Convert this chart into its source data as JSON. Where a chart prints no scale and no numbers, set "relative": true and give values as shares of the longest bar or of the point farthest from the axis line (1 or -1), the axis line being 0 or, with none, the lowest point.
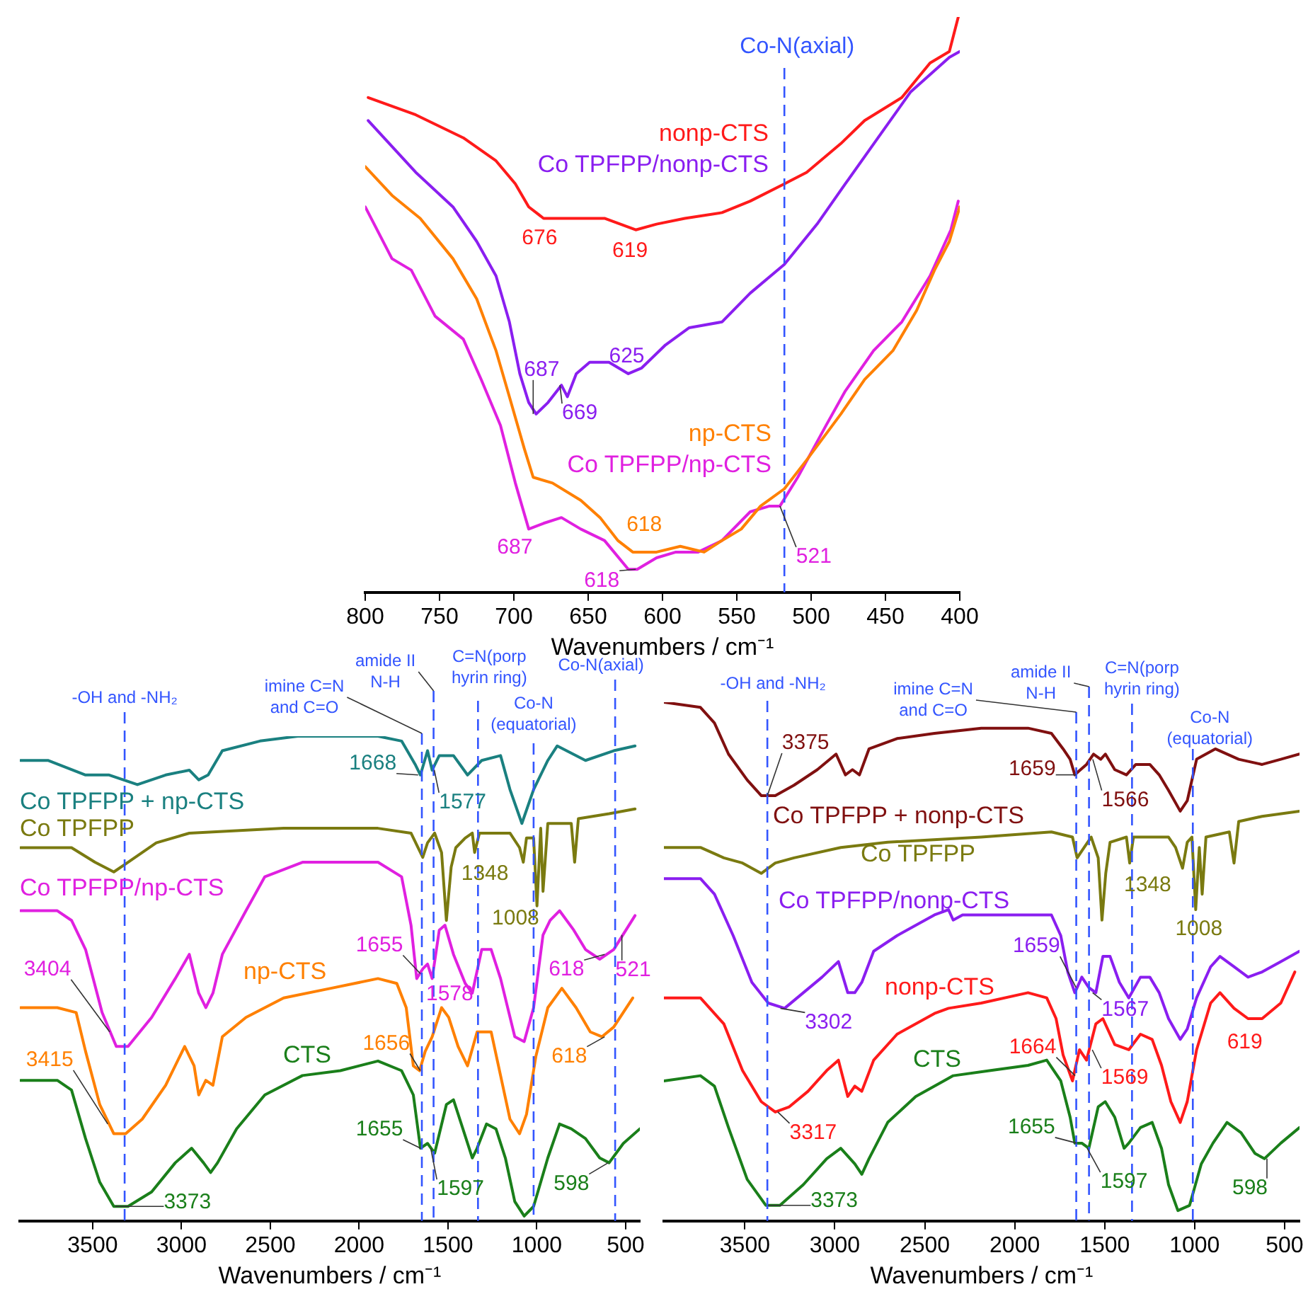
{
  "chart_data": [
    {
      "type": "line",
      "relative": true,
      "xlabel": "Wavenumbers / cm⁻¹",
      "xlim": [
        800,
        400
      ],
      "xticks": [
        800,
        750,
        700,
        650,
        600,
        550,
        500,
        450,
        400
      ],
      "series": [
        {
          "name": "nonp-CTS",
          "color": "#ff1a1a",
          "x": [
            798,
            766,
            734,
            712,
            699,
            690,
            680,
            668,
            652,
            639,
            618,
            604,
            585,
            560,
            541,
            518,
            503,
            480,
            464,
            439,
            420,
            407,
            401
          ],
          "values": [
            0.86,
            0.83,
            0.79,
            0.75,
            0.71,
            0.67,
            0.65,
            0.65,
            0.65,
            0.65,
            0.63,
            0.64,
            0.65,
            0.66,
            0.68,
            0.71,
            0.73,
            0.78,
            0.82,
            0.86,
            0.92,
            0.94,
            1
          ]
        },
        {
          "name": "Co TPFPP/nonp-CTS",
          "color": "#8a1ef0",
          "x": [
            798,
            766,
            741,
            725,
            712,
            703,
            696,
            690,
            685,
            677,
            668,
            664,
            658,
            649,
            636,
            623,
            614,
            598,
            582,
            560,
            541,
            518,
            496,
            477,
            455,
            433,
            407,
            400
          ],
          "values": [
            0.82,
            0.73,
            0.67,
            0.61,
            0.55,
            0.47,
            0.38,
            0.33,
            0.31,
            0.33,
            0.36,
            0.34,
            0.38,
            0.4,
            0.4,
            0.38,
            0.39,
            0.43,
            0.46,
            0.47,
            0.52,
            0.57,
            0.64,
            0.71,
            0.79,
            0.87,
            0.93,
            0.94
          ]
        },
        {
          "name": "np-CTS",
          "color": "#ff8000",
          "x": [
            800,
            782,
            763,
            741,
            725,
            712,
            703,
            693,
            687,
            674,
            655,
            642,
            630,
            620,
            604,
            588,
            572,
            560,
            547,
            534,
            518,
            503,
            480,
            464,
            445,
            429,
            417,
            407,
            400
          ],
          "values": [
            0.74,
            0.69,
            0.65,
            0.58,
            0.51,
            0.42,
            0.34,
            0.25,
            0.2,
            0.19,
            0.16,
            0.13,
            0.09,
            0.07,
            0.07,
            0.08,
            0.07,
            0.09,
            0.11,
            0.15,
            0.18,
            0.23,
            0.31,
            0.37,
            0.42,
            0.49,
            0.56,
            0.61,
            0.67
          ]
        },
        {
          "name": "Co TPFPP/np-CTS",
          "color": "#e020e0",
          "x": [
            800,
            782,
            769,
            753,
            734,
            722,
            709,
            699,
            690,
            680,
            668,
            655,
            639,
            623,
            617,
            604,
            591,
            576,
            560,
            541,
            528,
            521,
            509,
            490,
            477,
            458,
            439,
            420,
            406,
            401
          ],
          "values": [
            0.67,
            0.58,
            0.56,
            0.48,
            0.44,
            0.37,
            0.29,
            0.19,
            0.11,
            0.12,
            0.13,
            0.11,
            0.09,
            0.04,
            0.04,
            0.06,
            0.07,
            0.07,
            0.09,
            0.14,
            0.15,
            0.15,
            0.2,
            0.29,
            0.35,
            0.42,
            0.47,
            0.55,
            0.63,
            0.68
          ]
        }
      ],
      "ref_lines": [
        {
          "axis": "x",
          "value": 518,
          "label": "Co-N(axial)",
          "color": "#3355ff",
          "line_style": "dashed"
        }
      ],
      "annotations": [
        {
          "text": "676",
          "x": 676,
          "y": 0.65
        },
        {
          "text": "619",
          "x": 619,
          "y": 0.63
        },
        {
          "text": "687",
          "x": 687,
          "y": 0.31
        },
        {
          "text": "669",
          "x": 669,
          "y": 0.36
        },
        {
          "text": "625",
          "x": 625,
          "y": 0.38
        },
        {
          "text": "618",
          "x": 618,
          "y": 0.07
        },
        {
          "text": "687",
          "x": 687,
          "y": 0.11
        },
        {
          "text": "618",
          "x": 618,
          "y": 0.04
        },
        {
          "text": "521",
          "x": 521,
          "y": 0.15
        }
      ]
    },
    {
      "type": "line",
      "relative": true,
      "xlabel": "Wavenumbers / cm⁻¹",
      "xlim": [
        3910,
        420
      ],
      "xticks": [
        3500,
        3000,
        2500,
        2000,
        1500,
        1000,
        500
      ],
      "series": [
        {
          "name": "Co TPFPP + np-CTS",
          "color": "#1a8080",
          "x": [
            3906,
            3752,
            3540,
            3407,
            3248,
            3089,
            2956,
            2903,
            2850,
            2770,
            2558,
            2345,
            2159,
            1894,
            1761,
            1682,
            1655,
            1615,
            1589,
            1549,
            1469,
            1390,
            1310,
            1204,
            1151,
            1084,
            1018,
            938,
            885,
            726,
            567,
            447
          ],
          "values": [
            0.95,
            0.95,
            0.92,
            0.92,
            0.9,
            0.92,
            0.93,
            0.91,
            0.92,
            0.97,
            0.99,
            1,
            1,
            1,
            0.99,
            0.94,
            0.92,
            0.97,
            0.93,
            0.96,
            0.96,
            0.92,
            0.95,
            0.96,
            0.89,
            0.82,
            0.89,
            0.95,
            0.98,
            0.95,
            0.97,
            0.98
          ]
        },
        {
          "name": "Co TPFPP",
          "color": "#7a7a10",
          "x": [
            3906,
            3619,
            3487,
            3381,
            3301,
            3142,
            2956,
            2425,
            1894,
            1708,
            1668,
            1642,
            1615,
            1575,
            1536,
            1509,
            1482,
            1456,
            1403,
            1363,
            1350,
            1323,
            1151,
            1097,
            1076,
            1058,
            1018,
            999,
            978,
            965,
            938,
            806,
            787,
            766,
            593,
            447
          ],
          "values": [
            0.77,
            0.77,
            0.74,
            0.72,
            0.74,
            0.78,
            0.8,
            0.81,
            0.81,
            0.8,
            0.77,
            0.75,
            0.78,
            0.8,
            0.76,
            0.62,
            0.73,
            0.77,
            0.79,
            0.8,
            0.76,
            0.8,
            0.8,
            0.77,
            0.74,
            0.79,
            0.79,
            0.65,
            0.81,
            0.68,
            0.82,
            0.82,
            0.74,
            0.83,
            0.84,
            0.85
          ]
        },
        {
          "name": "Co TPFPP/np-CTS",
          "color": "#e020e0",
          "x": [
            3906,
            3699,
            3619,
            3540,
            3447,
            3367,
            3301,
            3168,
            3035,
            2956,
            2903,
            2863,
            2823,
            2770,
            2637,
            2531,
            2319,
            1894,
            1761,
            1708,
            1676,
            1642,
            1615,
            1589,
            1549,
            1517,
            1469,
            1403,
            1363,
            1310,
            1257,
            1204,
            1124,
            1071,
            1018,
            965,
            925,
            872,
            792,
            726,
            646,
            567,
            447
          ],
          "values": [
            0.64,
            0.64,
            0.62,
            0.56,
            0.43,
            0.36,
            0.36,
            0.42,
            0.5,
            0.55,
            0.47,
            0.44,
            0.47,
            0.55,
            0.64,
            0.71,
            0.74,
            0.74,
            0.71,
            0.61,
            0.5,
            0.52,
            0.53,
            0.5,
            0.6,
            0.61,
            0.55,
            0.49,
            0.47,
            0.56,
            0.56,
            0.5,
            0.38,
            0.37,
            0.44,
            0.59,
            0.62,
            0.64,
            0.6,
            0.56,
            0.54,
            0.56,
            0.63
          ]
        },
        {
          "name": "np-CTS",
          "color": "#ff8000",
          "x": [
            3906,
            3699,
            3593,
            3540,
            3460,
            3381,
            3314,
            3221,
            3089,
            2982,
            2929,
            2903,
            2863,
            2823,
            2770,
            2637,
            2425,
            2159,
            1894,
            1788,
            1735,
            1695,
            1660,
            1628,
            1589,
            1536,
            1496,
            1443,
            1390,
            1336,
            1257,
            1204,
            1151,
            1097,
            1058,
            1005,
            938,
            859,
            779,
            699,
            633,
            567,
            460
          ],
          "values": [
            0.44,
            0.44,
            0.43,
            0.35,
            0.24,
            0.18,
            0.18,
            0.21,
            0.28,
            0.36,
            0.32,
            0.26,
            0.29,
            0.28,
            0.38,
            0.42,
            0.46,
            0.48,
            0.5,
            0.49,
            0.44,
            0.32,
            0.31,
            0.35,
            0.38,
            0.44,
            0.42,
            0.36,
            0.32,
            0.39,
            0.39,
            0.3,
            0.21,
            0.18,
            0.22,
            0.34,
            0.44,
            0.48,
            0.44,
            0.39,
            0.38,
            0.4,
            0.46
          ]
        },
        {
          "name": "CTS",
          "color": "#1a7f1a",
          "x": [
            3906,
            3699,
            3619,
            3540,
            3460,
            3381,
            3301,
            3168,
            3035,
            2943,
            2876,
            2836,
            2797,
            2690,
            2531,
            2319,
            2106,
            1894,
            1761,
            1695,
            1655,
            1615,
            1575,
            1509,
            1469,
            1416,
            1363,
            1336,
            1283,
            1230,
            1177,
            1124,
            1071,
            1018,
            938,
            872,
            806,
            726,
            646,
            593,
            513,
            420
          ],
          "values": [
            0.29,
            0.29,
            0.27,
            0.17,
            0.08,
            0.03,
            0.03,
            0.06,
            0.12,
            0.15,
            0.12,
            0.1,
            0.12,
            0.19,
            0.26,
            0.3,
            0.31,
            0.33,
            0.31,
            0.26,
            0.15,
            0.16,
            0.14,
            0.24,
            0.25,
            0.19,
            0.13,
            0.15,
            0.2,
            0.19,
            0.13,
            0.04,
            0.01,
            0.03,
            0.13,
            0.2,
            0.19,
            0.17,
            0.13,
            0.12,
            0.16,
            0.19
          ]
        }
      ],
      "ref_lines": [
        {
          "axis": "x",
          "value": 3320,
          "label": "-OH and -NH₂",
          "color": "#3355ff",
          "line_style": "dashed"
        },
        {
          "axis": "x",
          "value": 1647,
          "label": "imine C=N and C=O",
          "color": "#3355ff",
          "line_style": "dashed"
        },
        {
          "axis": "x",
          "value": 1581,
          "label": "amide II N-H",
          "color": "#3355ff",
          "line_style": "dashed"
        },
        {
          "axis": "x",
          "value": 1331,
          "label": "C=N(porp hyrin ring)",
          "color": "#3355ff",
          "line_style": "dashed"
        },
        {
          "axis": "x",
          "value": 1018,
          "label": "Co-N (equatorial)",
          "color": "#3355ff",
          "line_style": "dashed"
        },
        {
          "axis": "x",
          "value": 559,
          "label": "Co-N(axial)",
          "color": "#3355ff",
          "line_style": "dashed"
        }
      ],
      "annotations": [
        {
          "text": "1668",
          "x": 1668,
          "y": 0.92
        },
        {
          "text": "1577",
          "x": 1577,
          "y": 0.93
        },
        {
          "text": "1348",
          "x": 1348,
          "y": 0.76
        },
        {
          "text": "1008",
          "x": 1008,
          "y": 0.65
        },
        {
          "text": "3404",
          "x": 3404,
          "y": 0.39
        },
        {
          "text": "1655",
          "x": 1655,
          "y": 0.51
        },
        {
          "text": "1578",
          "x": 1578,
          "y": 0.5
        },
        {
          "text": "618",
          "x": 618,
          "y": 0.55
        },
        {
          "text": "521",
          "x": 521,
          "y": 0.59
        },
        {
          "text": "3415",
          "x": 3415,
          "y": 0.2
        },
        {
          "text": "1656",
          "x": 1656,
          "y": 0.31
        },
        {
          "text": "618",
          "x": 618,
          "y": 0.38
        },
        {
          "text": "3373",
          "x": 3373,
          "y": 0.03
        },
        {
          "text": "1655",
          "x": 1655,
          "y": 0.15
        },
        {
          "text": "1597",
          "x": 1597,
          "y": 0.15
        },
        {
          "text": "598",
          "x": 598,
          "y": 0.12
        }
      ]
    },
    {
      "type": "line",
      "relative": true,
      "xlabel": "Wavenumbers / cm⁻¹",
      "xlim": [
        3950,
        417
      ],
      "xticks": [
        3500,
        3000,
        2500,
        2000,
        1500,
        1000,
        500
      ],
      "series": [
        {
          "name": "Co TPFPP + nonp-CTS",
          "color": "#801010",
          "x": [
            3950,
            3747,
            3669,
            3591,
            3487,
            3409,
            3331,
            3227,
            3097,
            2993,
            2941,
            2902,
            2863,
            2810,
            2654,
            2446,
            2186,
            1926,
            1796,
            1731,
            1692,
            1666,
            1634,
            1601,
            1562,
            1522,
            1496,
            1444,
            1379,
            1327,
            1249,
            1197,
            1145,
            1080,
            1041,
            989,
            885,
            755,
            625,
            521,
            417
          ],
          "values": [
            1,
            0.99,
            0.96,
            0.9,
            0.85,
            0.82,
            0.82,
            0.84,
            0.87,
            0.9,
            0.86,
            0.87,
            0.86,
            0.91,
            0.93,
            0.94,
            0.95,
            0.95,
            0.94,
            0.91,
            0.89,
            0.86,
            0.87,
            0.88,
            0.9,
            0.89,
            0.9,
            0.87,
            0.86,
            0.88,
            0.88,
            0.86,
            0.83,
            0.79,
            0.81,
            0.89,
            0.91,
            0.89,
            0.88,
            0.89,
            0.9
          ]
        },
        {
          "name": "Co TPFPP",
          "color": "#7a7a10",
          "x": [
            3950,
            3747,
            3617,
            3513,
            3409,
            3331,
            3227,
            2967,
            2706,
            2186,
            1796,
            1679,
            1653,
            1614,
            1575,
            1536,
            1515,
            1494,
            1470,
            1379,
            1361,
            1340,
            1145,
            1106,
            1067,
            1041,
            1015,
            994,
            974,
            958,
            937,
            807,
            781,
            755,
            625,
            417
          ],
          "values": [
            0.72,
            0.72,
            0.7,
            0.69,
            0.67,
            0.69,
            0.7,
            0.72,
            0.73,
            0.74,
            0.75,
            0.74,
            0.7,
            0.72,
            0.74,
            0.7,
            0.58,
            0.67,
            0.73,
            0.74,
            0.69,
            0.74,
            0.74,
            0.72,
            0.68,
            0.73,
            0.74,
            0.6,
            0.72,
            0.63,
            0.74,
            0.75,
            0.69,
            0.77,
            0.78,
            0.79
          ]
        },
        {
          "name": "Co TPFPP/nonp-CTS",
          "color": "#8a1ef0",
          "x": [
            3950,
            3747,
            3669,
            3565,
            3461,
            3370,
            3279,
            3175,
            3071,
            2980,
            2928,
            2889,
            2850,
            2784,
            2654,
            2446,
            2368,
            2342,
            2290,
            2056,
            1796,
            1744,
            1705,
            1666,
            1627,
            1588,
            1549,
            1510,
            1470,
            1418,
            1366,
            1301,
            1249,
            1197,
            1145,
            1080,
            1041,
            989,
            911,
            859,
            781,
            703,
            625,
            521,
            417
          ],
          "values": [
            0.66,
            0.66,
            0.63,
            0.55,
            0.46,
            0.42,
            0.41,
            0.44,
            0.47,
            0.5,
            0.44,
            0.44,
            0.46,
            0.52,
            0.55,
            0.59,
            0.6,
            0.58,
            0.59,
            0.59,
            0.59,
            0.55,
            0.48,
            0.44,
            0.47,
            0.45,
            0.44,
            0.51,
            0.51,
            0.46,
            0.43,
            0.47,
            0.47,
            0.44,
            0.39,
            0.35,
            0.37,
            0.43,
            0.49,
            0.51,
            0.49,
            0.47,
            0.48,
            0.5,
            0.52
          ]
        },
        {
          "name": "nonp-CTS",
          "color": "#ff1a1a",
          "x": [
            3950,
            3747,
            3617,
            3513,
            3409,
            3331,
            3253,
            3149,
            3045,
            2980,
            2928,
            2889,
            2850,
            2784,
            2654,
            2446,
            2368,
            2186,
            1926,
            1822,
            1770,
            1731,
            1679,
            1640,
            1601,
            1549,
            1510,
            1444,
            1366,
            1301,
            1236,
            1184,
            1132,
            1080,
            1041,
            989,
            911,
            859,
            781,
            703,
            625,
            521,
            443
          ],
          "values": [
            0.43,
            0.43,
            0.38,
            0.29,
            0.23,
            0.21,
            0.22,
            0.25,
            0.29,
            0.31,
            0.24,
            0.26,
            0.25,
            0.31,
            0.36,
            0.4,
            0.41,
            0.42,
            0.44,
            0.43,
            0.39,
            0.32,
            0.27,
            0.33,
            0.31,
            0.38,
            0.39,
            0.34,
            0.33,
            0.36,
            0.35,
            0.3,
            0.23,
            0.19,
            0.23,
            0.33,
            0.42,
            0.44,
            0.41,
            0.39,
            0.39,
            0.42,
            0.48
          ]
        },
        {
          "name": "CTS",
          "color": "#1a7f1a",
          "x": [
            3950,
            3747,
            3669,
            3591,
            3487,
            3383,
            3305,
            3175,
            3045,
            2967,
            2889,
            2850,
            2810,
            2706,
            2550,
            2342,
            2134,
            1926,
            1822,
            1744,
            1692,
            1666,
            1627,
            1588,
            1536,
            1497,
            1444,
            1392,
            1366,
            1301,
            1236,
            1184,
            1145,
            1093,
            1028,
            963,
            898,
            820,
            742,
            664,
            612,
            521,
            417
          ],
          "values": [
            0.27,
            0.28,
            0.26,
            0.18,
            0.08,
            0.03,
            0.03,
            0.07,
            0.12,
            0.14,
            0.11,
            0.09,
            0.12,
            0.19,
            0.24,
            0.28,
            0.29,
            0.3,
            0.31,
            0.27,
            0.2,
            0.15,
            0.15,
            0.14,
            0.22,
            0.23,
            0.2,
            0.14,
            0.15,
            0.18,
            0.19,
            0.14,
            0.07,
            0.02,
            0.03,
            0.11,
            0.15,
            0.19,
            0.17,
            0.13,
            0.12,
            0.15,
            0.18
          ]
        }
      ],
      "ref_lines": [
        {
          "axis": "x",
          "value": 3375,
          "label": "-OH and -NH₂",
          "color": "#3355ff",
          "line_style": "dashed"
        },
        {
          "axis": "x",
          "value": 1658,
          "label": "imine C=N and C=O",
          "color": "#3355ff",
          "line_style": "dashed"
        },
        {
          "axis": "x",
          "value": 1587,
          "label": "amide II N-H",
          "color": "#3355ff",
          "line_style": "dashed"
        },
        {
          "axis": "x",
          "value": 1348,
          "label": "C=N(porp hyrin ring)",
          "color": "#3355ff",
          "line_style": "dashed"
        },
        {
          "axis": "x",
          "value": 1010,
          "label": "Co-N (equatorial)",
          "color": "#3355ff",
          "line_style": "dashed"
        }
      ],
      "annotations": [
        {
          "text": "3375",
          "x": 3375,
          "y": 0.82
        },
        {
          "text": "1659",
          "x": 1659,
          "y": 0.86
        },
        {
          "text": "1566",
          "x": 1566,
          "y": 0.89
        },
        {
          "text": "1348",
          "x": 1348,
          "y": 0.69
        },
        {
          "text": "1008",
          "x": 1008,
          "y": 0.6
        },
        {
          "text": "3302",
          "x": 3302,
          "y": 0.41
        },
        {
          "text": "1659",
          "x": 1659,
          "y": 0.45
        },
        {
          "text": "1567",
          "x": 1567,
          "y": 0.44
        },
        {
          "text": "3317",
          "x": 3317,
          "y": 0.21
        },
        {
          "text": "1664",
          "x": 1664,
          "y": 0.28
        },
        {
          "text": "1569",
          "x": 1569,
          "y": 0.33
        },
        {
          "text": "619",
          "x": 619,
          "y": 0.39
        },
        {
          "text": "3373",
          "x": 3373,
          "y": 0.03
        },
        {
          "text": "1655",
          "x": 1655,
          "y": 0.15
        },
        {
          "text": "1597",
          "x": 1597,
          "y": 0.14
        },
        {
          "text": "598",
          "x": 598,
          "y": 0.12
        }
      ]
    }
  ]
}
